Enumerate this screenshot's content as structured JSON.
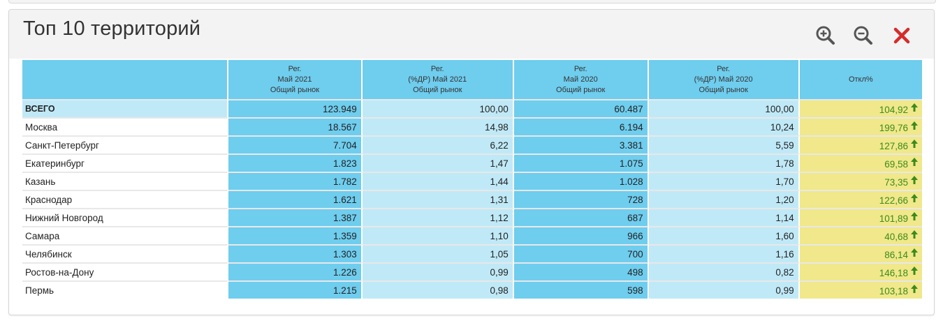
{
  "panel": {
    "title": "Топ 10 территорий"
  },
  "toolbar": {
    "zoom_in": "zoom-in-icon",
    "zoom_out": "zoom-out-icon",
    "close": "close-icon"
  },
  "colors": {
    "header_bg": "#6fcdee",
    "dark_cell": "#6fcdee",
    "light_cell": "#c0e9f7",
    "delta_cell": "#f0e88a",
    "delta_text": "#3c8a1c",
    "close_icon": "#d62b2b",
    "zoom_icon": "#555555"
  },
  "table": {
    "columns": [
      {
        "l1": "Рег.",
        "l2": "Май 2021",
        "l3": "Общий рынок"
      },
      {
        "l1": "Рег.",
        "l2": "(%ДР) Май 2021",
        "l3": "Общий рынок"
      },
      {
        "l1": "Рег.",
        "l2": "Май 2020",
        "l3": "Общий рынок"
      },
      {
        "l1": "Рег.",
        "l2": "(%ДР) Май 2020",
        "l3": "Общий рынок"
      },
      {
        "l1": "",
        "l2": "Откл%",
        "l3": ""
      }
    ],
    "rows": [
      {
        "name": "ВСЕГО",
        "v1": "123.949",
        "v2": "100,00",
        "v3": "60.487",
        "v4": "100,00",
        "d": "104,92",
        "trend": "up-arrow-icon"
      },
      {
        "name": "Москва",
        "v1": "18.567",
        "v2": "14,98",
        "v3": "6.194",
        "v4": "10,24",
        "d": "199,76",
        "trend": "up-arrow-icon"
      },
      {
        "name": "Санкт-Петербург",
        "v1": "7.704",
        "v2": "6,22",
        "v3": "3.381",
        "v4": "5,59",
        "d": "127,86",
        "trend": "up-arrow-icon"
      },
      {
        "name": "Екатеринбург",
        "v1": "1.823",
        "v2": "1,47",
        "v3": "1.075",
        "v4": "1,78",
        "d": "69,58",
        "trend": "up-arrow-icon"
      },
      {
        "name": "Казань",
        "v1": "1.782",
        "v2": "1,44",
        "v3": "1.028",
        "v4": "1,70",
        "d": "73,35",
        "trend": "up-arrow-icon"
      },
      {
        "name": "Краснодар",
        "v1": "1.621",
        "v2": "1,31",
        "v3": "728",
        "v4": "1,20",
        "d": "122,66",
        "trend": "up-arrow-icon"
      },
      {
        "name": "Нижний Новгород",
        "v1": "1.387",
        "v2": "1,12",
        "v3": "687",
        "v4": "1,14",
        "d": "101,89",
        "trend": "up-arrow-icon"
      },
      {
        "name": "Самара",
        "v1": "1.359",
        "v2": "1,10",
        "v3": "966",
        "v4": "1,60",
        "d": "40,68",
        "trend": "up-arrow-icon"
      },
      {
        "name": "Челябинск",
        "v1": "1.303",
        "v2": "1,05",
        "v3": "700",
        "v4": "1,16",
        "d": "86,14",
        "trend": "up-arrow-icon"
      },
      {
        "name": "Ростов-на-Дону",
        "v1": "1.226",
        "v2": "0,99",
        "v3": "498",
        "v4": "0,82",
        "d": "146,18",
        "trend": "up-arrow-icon"
      },
      {
        "name": "Пермь",
        "v1": "1.215",
        "v2": "0,98",
        "v3": "598",
        "v4": "0,99",
        "d": "103,18",
        "trend": "up-arrow-icon"
      }
    ]
  }
}
